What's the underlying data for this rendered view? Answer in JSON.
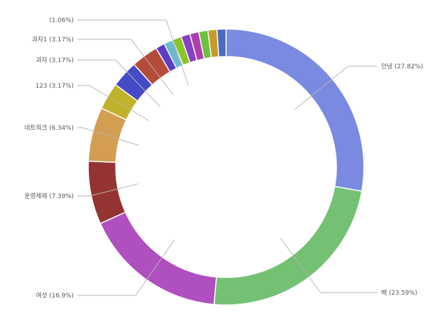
{
  "chart_data": {
    "type": "pie",
    "donut": true,
    "start_angle_deg": 0,
    "direction": "clockwise",
    "slices": [
      {
        "name": "안녕",
        "value": 27.82,
        "label": "안녕 (27.82%)",
        "color": "#7a8ae0"
      },
      {
        "name": "배",
        "value": 23.59,
        "label": "배      (23.59%)",
        "color": "#74c174"
      },
      {
        "name": "여섯",
        "value": 16.9,
        "label": "여섯 (16.9%)",
        "color": "#b04fc0"
      },
      {
        "name": "운영체제",
        "value": 7.39,
        "label": "운영체제 (7.39%)",
        "color": "#943432"
      },
      {
        "name": "네트워크",
        "value": 6.34,
        "label": "네트워크 (6.34%)",
        "color": "#d39e52"
      },
      {
        "name": "123",
        "value": 3.17,
        "label": "123 (3.17%)",
        "color": "#c0b32a"
      },
      {
        "name": "과자",
        "value": 3.17,
        "label": "과자 (3.17%)",
        "color": "#454bc6"
      },
      {
        "name": "과자1",
        "value": 3.17,
        "label": "과자1 (3.17%)",
        "color": "#b54b3a"
      },
      {
        "name": "",
        "value": 1.06,
        "label": "",
        "color": "#5b3cc4"
      },
      {
        "name": "",
        "value": 1.06,
        "label": "(1.06%)",
        "color": "#6bb9cf"
      },
      {
        "name": "",
        "value": 1.06,
        "label": "",
        "color": "#8ac42a"
      },
      {
        "name": "",
        "value": 1.06,
        "label": "",
        "color": "#8840c4"
      },
      {
        "name": "",
        "value": 1.06,
        "label": "",
        "color": "#b03fae"
      },
      {
        "name": "",
        "value": 1.06,
        "label": "",
        "color": "#6cc23c"
      },
      {
        "name": "",
        "value": 1.06,
        "label": "",
        "color": "#c59a2e"
      },
      {
        "name": "",
        "value": 1.06,
        "label": "",
        "color": "#4a6ac4"
      }
    ]
  }
}
